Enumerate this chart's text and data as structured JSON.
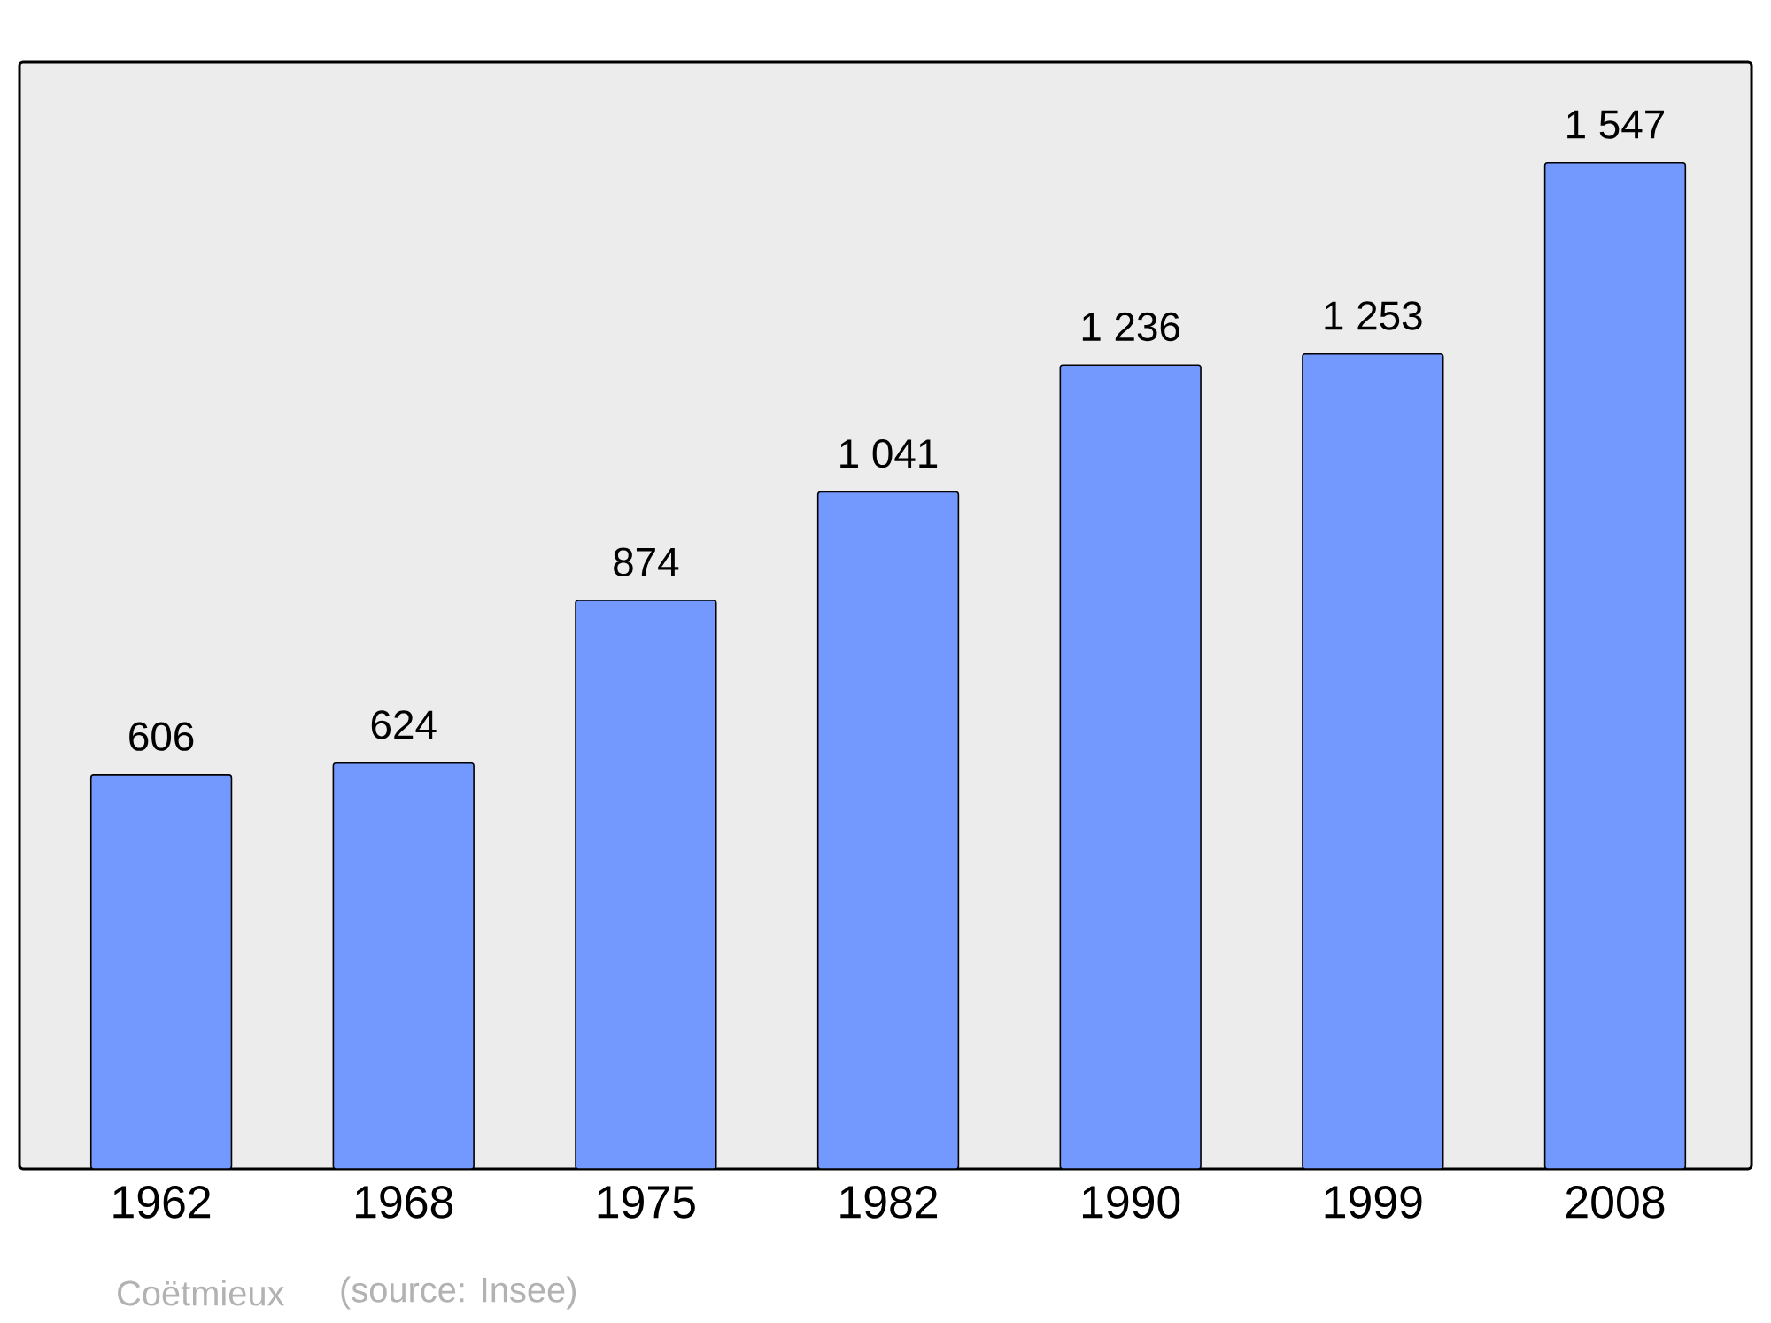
{
  "chart_data": {
    "type": "bar",
    "categories": [
      "1962",
      "1968",
      "1975",
      "1982",
      "1990",
      "1999",
      "2008"
    ],
    "values": [
      606,
      624,
      874,
      1041,
      1236,
      1253,
      1547
    ],
    "value_labels": [
      "606",
      "624",
      "874",
      "1 041",
      "1 236",
      "1 253",
      "1 547"
    ],
    "color": "#7399ff",
    "ylim": [
      0,
      1702
    ],
    "annotations": [
      "Coëtmieux",
      "(source: Insee)"
    ]
  }
}
